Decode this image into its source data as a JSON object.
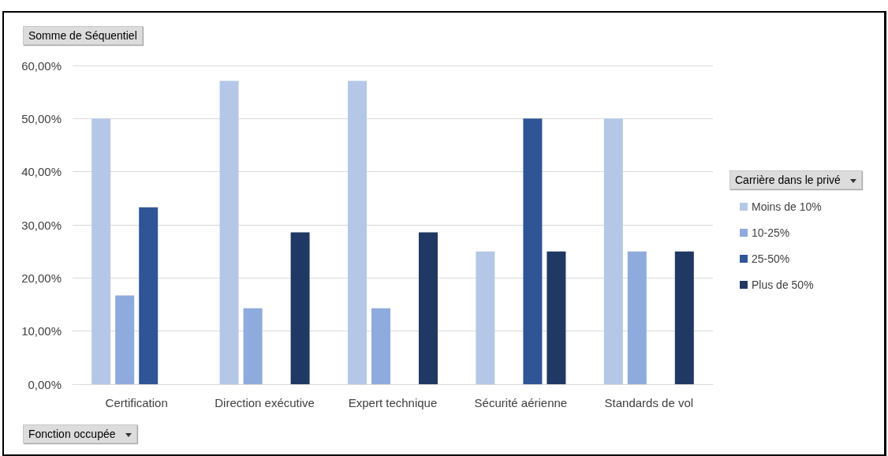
{
  "chart_data": {
    "type": "bar",
    "title": "Somme de Séquentiel",
    "xlabel": "Fonction occupée",
    "legend_title": "Carrière dans le privé",
    "categories": [
      "Certification",
      "Direction exécutive",
      "Expert technique",
      "Sécurité aérienne",
      "Standards de vol"
    ],
    "series": [
      {
        "name": "Moins de 10%",
        "color": "#b4c7e7",
        "values": [
          50,
          57.1,
          57.1,
          25,
          50
        ]
      },
      {
        "name": "10-25%",
        "color": "#8faadc",
        "values": [
          16.7,
          14.3,
          14.3,
          null,
          25
        ]
      },
      {
        "name": "25-50%",
        "color": "#2f5597",
        "values": [
          33.3,
          null,
          null,
          50,
          null
        ]
      },
      {
        "name": "Plus de 50%",
        "color": "#203864",
        "values": [
          null,
          28.6,
          28.6,
          25,
          25
        ]
      }
    ],
    "ylim": [
      0,
      60
    ],
    "yticks": [
      {
        "value": 0,
        "label": "0,00%"
      },
      {
        "value": 10,
        "label": "10,00%"
      },
      {
        "value": 20,
        "label": "20,00%"
      },
      {
        "value": 30,
        "label": "30,00%"
      },
      {
        "value": 40,
        "label": "40,00%"
      },
      {
        "value": 50,
        "label": "50,00%"
      },
      {
        "value": 60,
        "label": "60,00%"
      }
    ],
    "grid": "y",
    "legend": "right"
  }
}
